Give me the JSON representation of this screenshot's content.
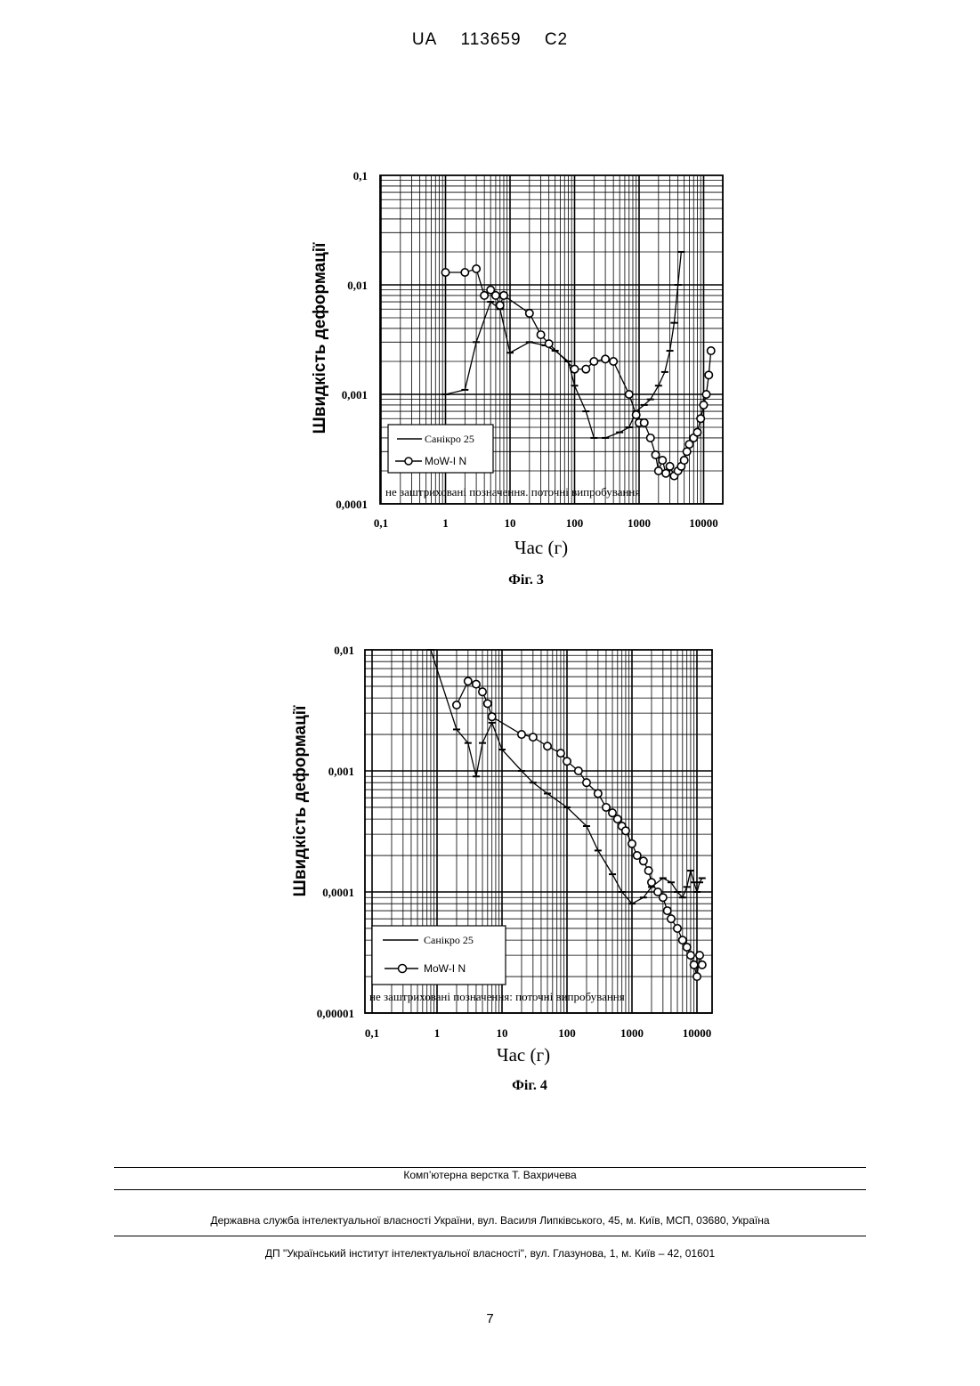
{
  "header": {
    "country": "UA",
    "number": "113659",
    "kind": "C2"
  },
  "chart_data": [
    {
      "type": "line",
      "caption": "Фіг. 3",
      "xlabel": "Час (г)",
      "ylabel": "Швидкість деформації",
      "xscale": "log",
      "yscale": "log",
      "xlim": [
        0.1,
        30000
      ],
      "ylim": [
        0.0001,
        0.1
      ],
      "xticks": [
        "0,1",
        "1",
        "10",
        "100",
        "1000",
        "10000"
      ],
      "yticks": [
        "0,0001",
        "0,001",
        "0,01",
        "0,1"
      ],
      "grid": true,
      "legend_position": "bottom-left",
      "note": "не заштриховані позначення. поточні випробування",
      "series": [
        {
          "name": "Санікро 25",
          "marker": "dash",
          "x": [
            1,
            2,
            3,
            5,
            7,
            10,
            20,
            35,
            50,
            80,
            100,
            150,
            200,
            300,
            500,
            700,
            900,
            1200,
            1500,
            2000,
            2500,
            3000,
            3500,
            4000,
            4500
          ],
          "y": [
            0.001,
            0.0011,
            0.003,
            0.007,
            0.006,
            0.0024,
            0.003,
            0.0028,
            0.0025,
            0.002,
            0.0012,
            0.0007,
            0.0004,
            0.0004,
            0.00045,
            0.0005,
            0.0007,
            0.0008,
            0.0009,
            0.0012,
            0.0016,
            0.0025,
            0.0045,
            0.01,
            0.02
          ]
        },
        {
          "name": "MoW-I N",
          "marker": "circle",
          "x": [
            1,
            2,
            3,
            4,
            5,
            6,
            7,
            8,
            20,
            30,
            40,
            100,
            150,
            200,
            300,
            400,
            700,
            900,
            1000,
            1200,
            1500,
            1800,
            2000,
            2300,
            2600,
            3000,
            3500,
            4000,
            4500,
            5000,
            5500,
            6000,
            7000,
            8000,
            9000,
            10000,
            11000,
            12000,
            13000
          ],
          "y": [
            0.013,
            0.013,
            0.014,
            0.008,
            0.009,
            0.008,
            0.0065,
            0.008,
            0.0055,
            0.0035,
            0.0029,
            0.0017,
            0.0017,
            0.002,
            0.0021,
            0.002,
            0.001,
            0.00065,
            0.00055,
            0.00055,
            0.0004,
            0.00028,
            0.0002,
            0.00025,
            0.00019,
            0.00022,
            0.00018,
            0.0002,
            0.00022,
            0.00025,
            0.0003,
            0.00035,
            0.0004,
            0.00045,
            0.0006,
            0.0008,
            0.001,
            0.0015,
            0.0025
          ]
        }
      ]
    },
    {
      "type": "line",
      "caption": "Фіг. 4",
      "xlabel": "Час (г)",
      "ylabel": "Швидкість деформації",
      "xscale": "log",
      "yscale": "log",
      "xlim": [
        0.1,
        30000
      ],
      "ylim": [
        1e-05,
        0.01
      ],
      "xticks": [
        "0,1",
        "1",
        "10",
        "100",
        "1000",
        "10000"
      ],
      "yticks": [
        "0,00001",
        "0,0001",
        "0,001",
        "0,01"
      ],
      "grid": true,
      "legend_position": "bottom-left",
      "note": "не заштриховані позначення: поточні випробування",
      "series": [
        {
          "name": "Санікро 25",
          "marker": "dash",
          "x": [
            0.8,
            2,
            3,
            4,
            5,
            7,
            10,
            20,
            30,
            50,
            100,
            200,
            300,
            500,
            700,
            1000,
            1500,
            2000,
            3000,
            4000,
            5000,
            6000,
            7000,
            8000,
            9000,
            10000,
            11000,
            12000
          ],
          "y": [
            0.01,
            0.0022,
            0.0017,
            0.0009,
            0.0017,
            0.0025,
            0.0015,
            0.001,
            0.0008,
            0.00065,
            0.0005,
            0.00035,
            0.00022,
            0.00014,
            0.0001,
            8e-05,
            9e-05,
            0.00011,
            0.00013,
            0.00012,
            0.0001,
            9e-05,
            0.00011,
            0.00015,
            0.00012,
            0.0001,
            0.00012,
            0.00013
          ]
        },
        {
          "name": "MoW-I N",
          "marker": "circle",
          "x": [
            2,
            3,
            4,
            5,
            6,
            7,
            20,
            30,
            50,
            80,
            100,
            150,
            200,
            300,
            400,
            500,
            600,
            700,
            800,
            1000,
            1200,
            1500,
            1800,
            2000,
            2500,
            3000,
            3500,
            4000,
            5000,
            6000,
            7000,
            8000,
            9000,
            10000,
            11000,
            12000
          ],
          "y": [
            0.0035,
            0.0055,
            0.0052,
            0.0045,
            0.0036,
            0.0028,
            0.002,
            0.0019,
            0.0016,
            0.0014,
            0.0012,
            0.001,
            0.0008,
            0.00065,
            0.0005,
            0.00045,
            0.0004,
            0.00035,
            0.00032,
            0.00025,
            0.0002,
            0.00018,
            0.00015,
            0.00012,
            0.0001,
            9e-05,
            7e-05,
            6e-05,
            5e-05,
            4e-05,
            3.5e-05,
            3e-05,
            2.5e-05,
            2e-05,
            3e-05,
            2.5e-05
          ]
        }
      ]
    }
  ],
  "footer": {
    "layout_credit": "Комп’ютерна верстка Т. Вахричева",
    "agency": "Державна служба інтелектуальної власності України, вул. Василя Липківського, 45, м. Київ, МСП, 03680, Україна",
    "institute": "ДП \"Український інститут інтелектуальної власності\", вул. Глазунова, 1, м. Київ – 42, 01601"
  },
  "page_number": "7"
}
